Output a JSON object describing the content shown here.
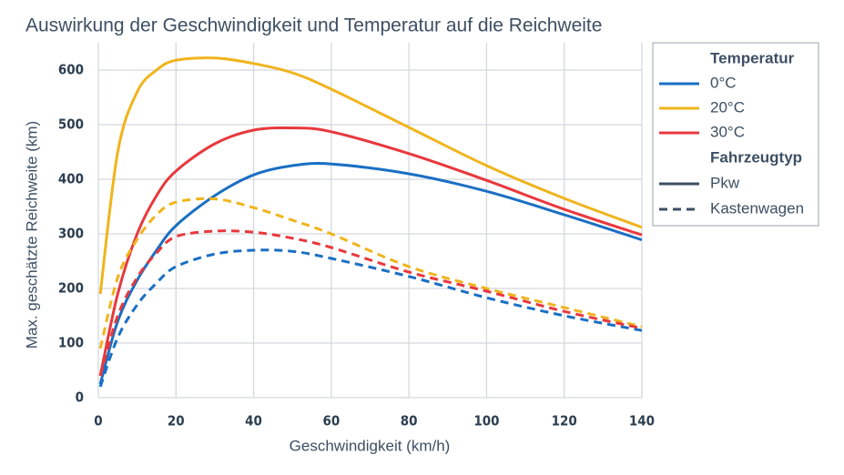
{
  "chart_data": {
    "type": "line",
    "title": "Auswirkung der Geschwindigkeit und Temperatur auf die Reichweite",
    "x_label": "Geschwindigkeit (km/h)",
    "y_label": "Max. geschätzte Reichweite (km)",
    "x": [
      0.5,
      5,
      10,
      15,
      20,
      30,
      40,
      50,
      60,
      80,
      100,
      120,
      140
    ],
    "series": [
      {
        "color": "#1a6fc4",
        "dash": "solid",
        "values": [
          25,
          140,
          215,
          270,
          315,
          370,
          408,
          425,
          428,
          410,
          378,
          335,
          289
        ]
      },
      {
        "color": "#f0b41c",
        "dash": "solid",
        "values": [
          190,
          450,
          560,
          600,
          618,
          622,
          612,
          595,
          565,
          495,
          425,
          365,
          312
        ]
      },
      {
        "color": "#e8383d",
        "dash": "solid",
        "values": [
          40,
          190,
          300,
          370,
          415,
          465,
          490,
          494,
          487,
          447,
          398,
          345,
          298
        ]
      },
      {
        "color": "#1a6fc4",
        "dash": "dashed",
        "values": [
          20,
          110,
          170,
          210,
          240,
          263,
          270,
          268,
          255,
          222,
          183,
          150,
          123
        ]
      },
      {
        "color": "#f0b41c",
        "dash": "dashed",
        "values": [
          90,
          220,
          290,
          335,
          358,
          364,
          348,
          325,
          300,
          240,
          200,
          165,
          130
        ]
      },
      {
        "color": "#e8383d",
        "dash": "dashed",
        "values": [
          40,
          150,
          220,
          265,
          295,
          305,
          303,
          292,
          275,
          230,
          195,
          158,
          127
        ]
      }
    ],
    "legend": {
      "temperature": {
        "title": "Temperatur",
        "items": [
          {
            "name": "0°C",
            "color": "#1a6fc4"
          },
          {
            "name": "20°C",
            "color": "#f0b41c"
          },
          {
            "name": "30°C",
            "color": "#e8383d"
          }
        ]
      },
      "vehicle": {
        "title": "Fahrzeugtyp",
        "items": [
          {
            "name": "Pkw",
            "dash": "solid"
          },
          {
            "name": "Kastenwagen",
            "dash": "dashed"
          }
        ]
      }
    },
    "xlim": [
      0,
      140
    ],
    "xticks": [
      0,
      20,
      40,
      60,
      80,
      100,
      120,
      140
    ],
    "ylim": [
      0,
      650
    ],
    "yticks": [
      0,
      100,
      200,
      300,
      400,
      500,
      600
    ],
    "grid": true
  }
}
